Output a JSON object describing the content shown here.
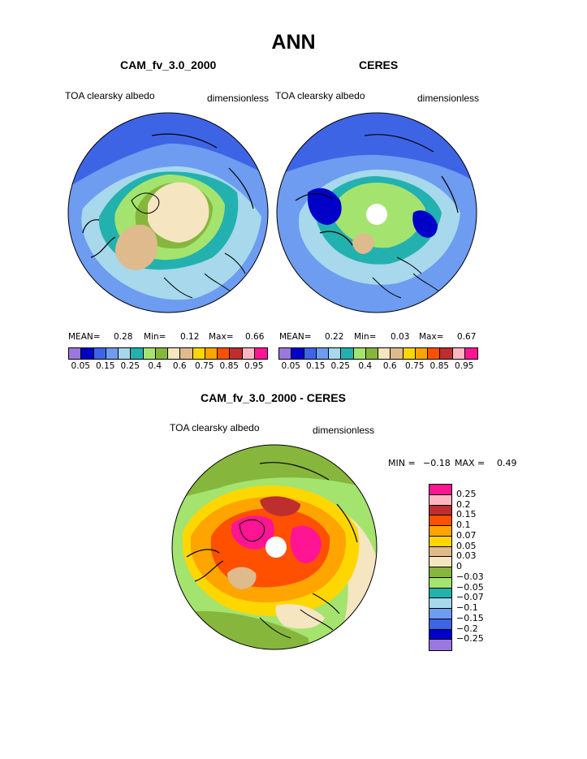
{
  "title": "ANN",
  "panels": [
    {
      "title": "CAM_fv_3.0_2000",
      "variable": "TOA clearsky albedo",
      "units": "dimensionless",
      "stats": {
        "mean_label": "MEAN=",
        "mean": "0.28",
        "min_label": "Min=",
        "min": "0.12",
        "max_label": "Max=",
        "max": "0.66"
      }
    },
    {
      "title": "CERES",
      "variable": "TOA clearsky albedo",
      "units": "dimensionless",
      "stats": {
        "mean_label": "MEAN=",
        "mean": "0.22",
        "min_label": "Min=",
        "min": "0.03",
        "max_label": "Max=",
        "max": "0.67"
      }
    }
  ],
  "colorbar": {
    "colors": [
      "#9B78DD",
      "#0000C8",
      "#3E64E6",
      "#6D9CF0",
      "#A7D8EC",
      "#23B1AF",
      "#A4E36E",
      "#86B63C",
      "#F5E5C0",
      "#DEBA8C",
      "#FFD700",
      "#FFA400",
      "#FF5000",
      "#BE2E2E",
      "#FFB6C1",
      "#FF1493"
    ],
    "labels": [
      "0.05",
      "0.15",
      "0.25",
      "0.4",
      "0.6",
      "0.75",
      "0.85",
      "0.95"
    ]
  },
  "diff": {
    "title": "CAM_fv_3.0_2000 - CERES",
    "variable": "TOA clearsky albedo",
    "units": "dimensionless",
    "min_label": "MIN =",
    "min": "−0.18",
    "max_label": "MAX =",
    "max": "0.49",
    "colors_top_down": [
      "#FF1493",
      "#FFB6C1",
      "#BE2E2E",
      "#FF5000",
      "#FFA400",
      "#FFD700",
      "#DEBA8C",
      "#F5E5C0",
      "#86B63C",
      "#A4E36E",
      "#23B1AF",
      "#A7D8EC",
      "#6D9CF0",
      "#3E64E6",
      "#0000C8",
      "#9B78DD"
    ],
    "labels_top_down": [
      "0.25",
      "0.2",
      "0.15",
      "0.1",
      "0.07",
      "0.05",
      "0.03",
      "0",
      "−0.03",
      "−0.05",
      "−0.07",
      "−0.1",
      "−0.15",
      "−0.2",
      "−0.25"
    ]
  }
}
